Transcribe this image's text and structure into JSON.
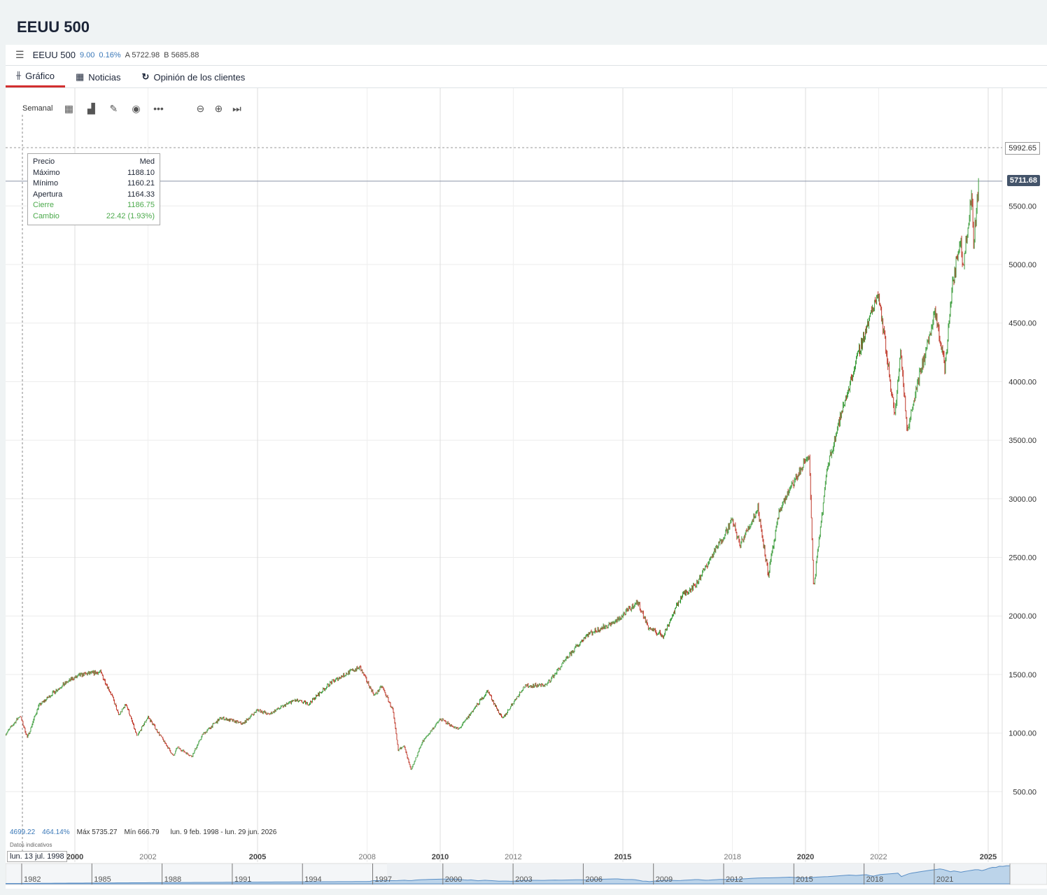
{
  "page": {
    "title": "EEUU 500"
  },
  "quote": {
    "name": "EEUU 500",
    "change": "9.00",
    "change_pct": "0.16%",
    "ask": "A 5722.98",
    "bid": "B 5685.88"
  },
  "tabs": [
    {
      "label": "Gráfico",
      "icon": "candlestick-icon",
      "active": true
    },
    {
      "label": "Noticias",
      "icon": "news-icon"
    },
    {
      "label": "Opinión de los clientes",
      "icon": "refresh-icon"
    }
  ],
  "toolbar": {
    "interval": "Semanal",
    "icons": [
      "calendar-icon",
      "bar-chart-icon",
      "pencil-icon",
      "eye-icon",
      "more-icon",
      "zoom-out-icon",
      "zoom-in-icon",
      "skip-end-icon"
    ]
  },
  "tooltip": {
    "header_left": "Precio",
    "header_right": "Med",
    "rows": [
      {
        "label": "Máximo",
        "value": "1188.10"
      },
      {
        "label": "Mínimo",
        "value": "1160.21"
      },
      {
        "label": "Apertura",
        "value": "1164.33"
      },
      {
        "label": "Cierre",
        "value": "1186.75"
      },
      {
        "label": "Cambio",
        "value": "22.42 (1.93%)"
      }
    ]
  },
  "price_labels": {
    "dashed": "5992.65",
    "current": "5711.68"
  },
  "stats": {
    "change": "4699.22",
    "change_pct": "464.14%",
    "max": "Máx 5735.27",
    "min": "Mín 666.79",
    "range": "lun. 9 feb. 1998 - lun. 29 jun. 2026",
    "note": "Datos indicativos",
    "cursor_date": "lun. 13 jul. 1998"
  },
  "colors": {
    "up": "#3f9e3f",
    "down": "#c0392b",
    "accent": "#d32f2f",
    "current_label": "#44546a"
  },
  "chart_data": {
    "type": "candlestick",
    "interval": "weekly",
    "y_ticks": [
      "500.00",
      "1000.00",
      "1500.00",
      "2000.00",
      "2500.00",
      "3000.00",
      "3500.00",
      "4000.00",
      "4500.00",
      "5000.00",
      "5500.00"
    ],
    "ylim": [
      0,
      6400
    ],
    "x_ticks": [
      {
        "label": "2000",
        "year": 2000,
        "bold": true
      },
      {
        "label": "2002",
        "year": 2002
      },
      {
        "label": "2005",
        "year": 2005,
        "bold": true
      },
      {
        "label": "2008",
        "year": 2008
      },
      {
        "label": "2010",
        "year": 2010,
        "bold": true
      },
      {
        "label": "2012",
        "year": 2012
      },
      {
        "label": "2015",
        "year": 2015,
        "bold": true
      },
      {
        "label": "2018",
        "year": 2018
      },
      {
        "label": "2020",
        "year": 2020,
        "bold": true
      },
      {
        "label": "2022",
        "year": 2022
      },
      {
        "label": "2025",
        "year": 2025,
        "bold": true
      }
    ],
    "navigator_ticks": [
      "1982",
      "1985",
      "1988",
      "1991",
      "1994",
      "1997",
      "2000",
      "2003",
      "2006",
      "2009",
      "2012",
      "2015",
      "2018",
      "2021"
    ],
    "close_path": [
      [
        1998.1,
        990
      ],
      [
        1998.5,
        1150
      ],
      [
        1998.7,
        960
      ],
      [
        1999.0,
        1230
      ],
      [
        1999.5,
        1370
      ],
      [
        1999.9,
        1460
      ],
      [
        2000.2,
        1500
      ],
      [
        2000.7,
        1520
      ],
      [
        2001.0,
        1330
      ],
      [
        2001.2,
        1150
      ],
      [
        2001.4,
        1250
      ],
      [
        2001.7,
        970
      ],
      [
        2002.0,
        1140
      ],
      [
        2002.5,
        900
      ],
      [
        2002.7,
        800
      ],
      [
        2002.8,
        880
      ],
      [
        2003.2,
        800
      ],
      [
        2003.5,
        990
      ],
      [
        2004.0,
        1130
      ],
      [
        2004.6,
        1080
      ],
      [
        2005.0,
        1200
      ],
      [
        2005.3,
        1160
      ],
      [
        2006.0,
        1280
      ],
      [
        2006.4,
        1250
      ],
      [
        2007.0,
        1430
      ],
      [
        2007.5,
        1520
      ],
      [
        2007.8,
        1560
      ],
      [
        2008.2,
        1320
      ],
      [
        2008.4,
        1400
      ],
      [
        2008.7,
        1200
      ],
      [
        2008.85,
        850
      ],
      [
        2009.0,
        900
      ],
      [
        2009.2,
        680
      ],
      [
        2009.5,
        920
      ],
      [
        2010.0,
        1120
      ],
      [
        2010.5,
        1030
      ],
      [
        2011.3,
        1360
      ],
      [
        2011.7,
        1120
      ],
      [
        2012.3,
        1400
      ],
      [
        2012.9,
        1410
      ],
      [
        2013.5,
        1650
      ],
      [
        2014.0,
        1840
      ],
      [
        2014.8,
        1950
      ],
      [
        2015.4,
        2120
      ],
      [
        2015.7,
        1900
      ],
      [
        2016.1,
        1830
      ],
      [
        2016.6,
        2170
      ],
      [
        2017.0,
        2270
      ],
      [
        2018.0,
        2820
      ],
      [
        2018.2,
        2600
      ],
      [
        2018.7,
        2920
      ],
      [
        2018.98,
        2350
      ],
      [
        2019.3,
        2920
      ],
      [
        2020.1,
        3380
      ],
      [
        2020.22,
        2230
      ],
      [
        2020.6,
        3280
      ],
      [
        2021.0,
        3750
      ],
      [
        2021.5,
        4300
      ],
      [
        2021.99,
        4770
      ],
      [
        2022.45,
        3700
      ],
      [
        2022.6,
        4280
      ],
      [
        2022.78,
        3580
      ],
      [
        2023.0,
        3900
      ],
      [
        2023.55,
        4580
      ],
      [
        2023.82,
        4120
      ],
      [
        2024.0,
        4770
      ],
      [
        2024.25,
        5250
      ],
      [
        2024.3,
        4970
      ],
      [
        2024.55,
        5600
      ],
      [
        2024.6,
        5200
      ],
      [
        2024.75,
        5712
      ]
    ]
  }
}
